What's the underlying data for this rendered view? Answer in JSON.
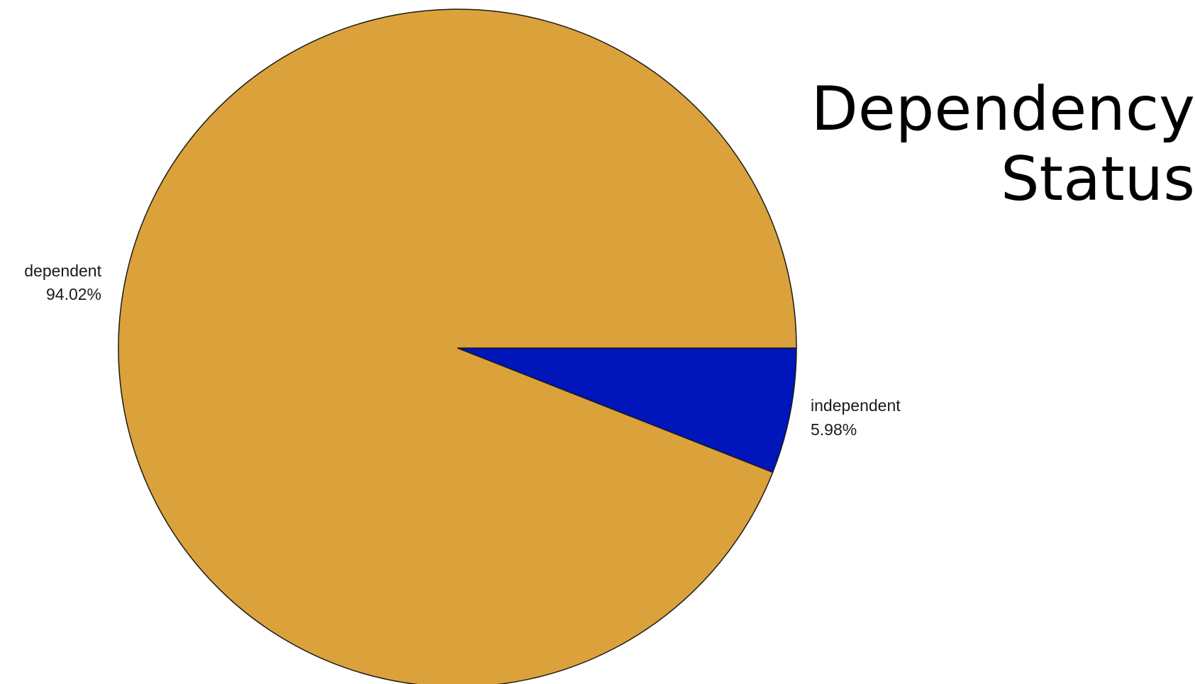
{
  "chart_data": {
    "type": "pie",
    "title": [
      "Dependency",
      "Status"
    ],
    "categories": [
      "dependent",
      "independent"
    ],
    "values": [
      94.02,
      5.98
    ],
    "value_labels": [
      "94.02%",
      "5.98%"
    ],
    "colors": {
      "dependent": "#DBA23B",
      "independent": "#0015BA",
      "outline": "#1a1a1a"
    },
    "start_angle": "3 o'clock",
    "direction": "clockwise from independent",
    "legend": "none"
  }
}
